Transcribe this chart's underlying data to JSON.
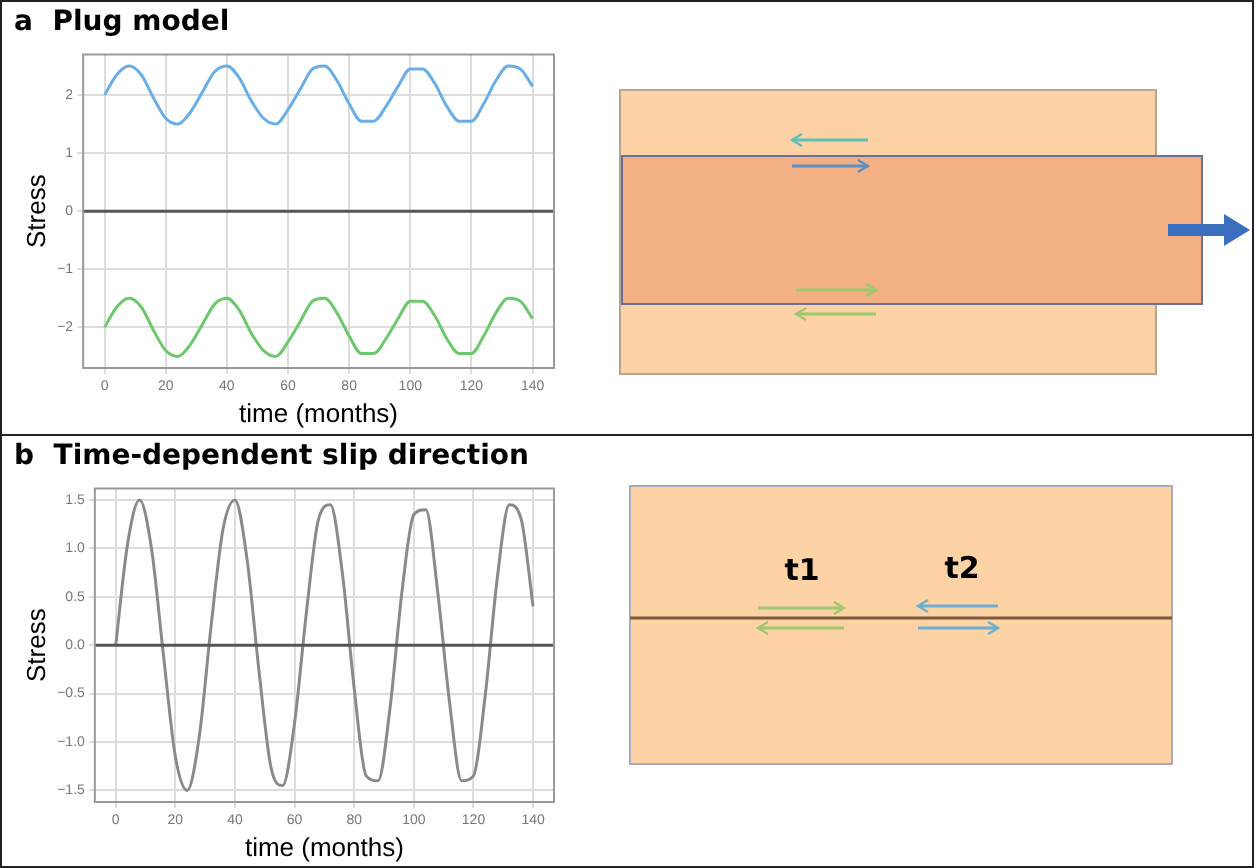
{
  "chart_data": [
    {
      "type": "line",
      "title": "a  Plug model",
      "xlabel": "time (months)",
      "ylabel": "Stress",
      "x": [
        0,
        4,
        8,
        12,
        16,
        20,
        24,
        28,
        32,
        36,
        40,
        44,
        48,
        52,
        56,
        60,
        64,
        68,
        72,
        76,
        80,
        84,
        88,
        92,
        96,
        100,
        104,
        108,
        112,
        116,
        120,
        124,
        128,
        132,
        136,
        140
      ],
      "series": [
        {
          "color": "#6aaee8",
          "values": [
            2,
            2.35,
            2.5,
            2.35,
            1.95,
            1.6,
            1.5,
            1.7,
            2.05,
            2.4,
            2.5,
            2.3,
            1.9,
            1.6,
            1.5,
            1.75,
            2.1,
            2.45,
            2.5,
            2.25,
            1.85,
            1.55,
            1.55,
            1.8,
            2.15,
            2.45,
            2.45,
            2.2,
            1.8,
            1.55,
            1.55,
            1.85,
            2.25,
            2.5,
            2.45,
            2.15
          ]
        },
        {
          "color": "#6cc86c",
          "values": [
            -2,
            -1.65,
            -1.5,
            -1.65,
            -2.05,
            -2.4,
            -2.5,
            -2.3,
            -1.95,
            -1.6,
            -1.5,
            -1.7,
            -2.1,
            -2.4,
            -2.5,
            -2.25,
            -1.9,
            -1.55,
            -1.5,
            -1.75,
            -2.15,
            -2.45,
            -2.45,
            -2.2,
            -1.85,
            -1.55,
            -1.55,
            -1.8,
            -2.2,
            -2.45,
            -2.45,
            -2.15,
            -1.75,
            -1.5,
            -1.55,
            -1.85
          ]
        }
      ],
      "xlim": [
        -7,
        147
      ],
      "xticks": [
        0,
        20,
        40,
        60,
        80,
        100,
        120,
        140
      ],
      "ylim": [
        -2.7,
        2.7
      ],
      "yticks": [
        {
          "value": -2,
          "label": "−2"
        },
        {
          "value": -1,
          "label": "−1"
        },
        0,
        1,
        2
      ],
      "ref_lines": [
        {
          "axis": "y",
          "value": 0,
          "color": "#555555"
        }
      ],
      "grid": true,
      "legend": false,
      "marker": "none",
      "line_style": "solid"
    },
    {
      "type": "line",
      "title": "b  Time-dependent slip direction",
      "xlabel": "time (months)",
      "ylabel": "Stress",
      "x": [
        0,
        4,
        8,
        12,
        16,
        20,
        24,
        28,
        32,
        36,
        40,
        44,
        48,
        52,
        56,
        60,
        64,
        68,
        72,
        76,
        80,
        84,
        88,
        92,
        96,
        100,
        104,
        108,
        112,
        116,
        120,
        124,
        128,
        132,
        136,
        140
      ],
      "series": [
        {
          "color": "#8a8a8a",
          "values": [
            0,
            1.05,
            1.5,
            1,
            -0.1,
            -1.15,
            -1.5,
            -0.95,
            0.2,
            1.2,
            1.5,
            0.9,
            -0.25,
            -1.25,
            -1.45,
            -0.8,
            0.35,
            1.3,
            1.45,
            0.75,
            -0.45,
            -1.35,
            -1.4,
            -0.65,
            0.55,
            1.35,
            1.4,
            0.55,
            -0.6,
            -1.4,
            -1.35,
            -0.5,
            0.7,
            1.45,
            1.3,
            0.4
          ]
        }
      ],
      "xlim": [
        -7,
        147
      ],
      "xticks": [
        0,
        20,
        40,
        60,
        80,
        100,
        120,
        140
      ],
      "ylim": [
        -1.62,
        1.62
      ],
      "yticks": [
        {
          "value": -1.5,
          "label": "−1.5"
        },
        {
          "value": -1,
          "label": "−1.0"
        },
        {
          "value": -0.5,
          "label": "−0.5"
        },
        {
          "value": 0,
          "label": "0.0"
        },
        {
          "value": 0.5,
          "label": "0.5"
        },
        {
          "value": 1,
          "label": "1.0"
        },
        1.5
      ],
      "ref_lines": [
        {
          "axis": "y",
          "value": 0,
          "color": "#555555"
        }
      ],
      "annotations": [
        "t1",
        "t2"
      ],
      "grid": true,
      "legend": false,
      "marker": "none",
      "line_style": "solid"
    }
  ]
}
